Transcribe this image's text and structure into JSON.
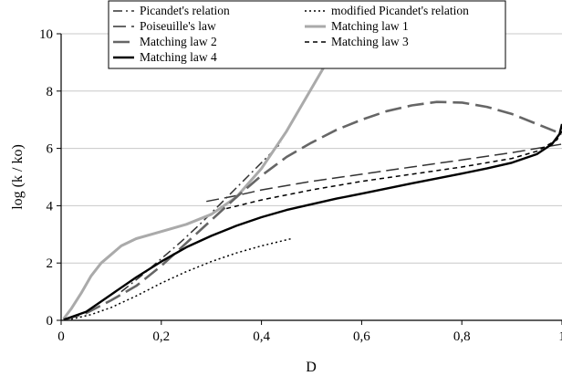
{
  "chart_data": {
    "type": "line",
    "title": "",
    "xlabel": "D",
    "ylabel": "log (k / ko)",
    "xlim": [
      0,
      1
    ],
    "ylim": [
      0,
      10
    ],
    "x_ticks": [
      0,
      0.2,
      0.4,
      0.6,
      0.8,
      1
    ],
    "x_tick_labels": [
      "0",
      "0,2",
      "0,4",
      "0,6",
      "0,8",
      "1"
    ],
    "y_ticks": [
      0,
      2,
      4,
      6,
      8,
      10
    ],
    "y_tick_labels": [
      "0",
      "2",
      "4",
      "6",
      "8",
      "10"
    ],
    "grid": "horizontal",
    "legend_position": "top",
    "series": [
      {
        "name": "Picandet's relation",
        "color": "#333333",
        "dash": "dash-dot",
        "points": [
          [
            0.12,
            1.0
          ],
          [
            0.16,
            1.55
          ],
          [
            0.2,
            2.15
          ],
          [
            0.24,
            2.75
          ],
          [
            0.28,
            3.4
          ],
          [
            0.32,
            4.1
          ],
          [
            0.36,
            4.8
          ],
          [
            0.4,
            5.5
          ],
          [
            0.44,
            6.2
          ]
        ]
      },
      {
        "name": "modified Picandet's relation",
        "color": "#000000",
        "dash": "dot",
        "points": [
          [
            0.02,
            0.04
          ],
          [
            0.06,
            0.2
          ],
          [
            0.1,
            0.45
          ],
          [
            0.15,
            0.85
          ],
          [
            0.2,
            1.3
          ],
          [
            0.25,
            1.7
          ],
          [
            0.3,
            2.05
          ],
          [
            0.35,
            2.35
          ],
          [
            0.4,
            2.6
          ],
          [
            0.46,
            2.85
          ]
        ]
      },
      {
        "name": "Poiseuille's law",
        "color": "#333333",
        "dash": "long-dash",
        "points": [
          [
            0.29,
            4.15
          ],
          [
            0.35,
            4.35
          ],
          [
            0.4,
            4.55
          ],
          [
            0.5,
            4.85
          ],
          [
            0.6,
            5.1
          ],
          [
            0.7,
            5.35
          ],
          [
            0.8,
            5.6
          ],
          [
            0.9,
            5.85
          ],
          [
            0.95,
            6.0
          ],
          [
            1.0,
            6.15
          ]
        ]
      },
      {
        "name": "Matching law 1",
        "color": "#aaaaaa",
        "dash": "solid",
        "points": [
          [
            0.005,
            0.05
          ],
          [
            0.02,
            0.4
          ],
          [
            0.04,
            0.95
          ],
          [
            0.06,
            1.55
          ],
          [
            0.08,
            2.0
          ],
          [
            0.1,
            2.3
          ],
          [
            0.12,
            2.6
          ],
          [
            0.15,
            2.85
          ],
          [
            0.2,
            3.1
          ],
          [
            0.25,
            3.35
          ],
          [
            0.3,
            3.7
          ],
          [
            0.35,
            4.3
          ],
          [
            0.4,
            5.3
          ],
          [
            0.45,
            6.6
          ],
          [
            0.5,
            8.1
          ],
          [
            0.55,
            9.6
          ],
          [
            0.57,
            10.2
          ]
        ]
      },
      {
        "name": "Matching law 2",
        "color": "#666666",
        "dash": "dash",
        "points": [
          [
            0.005,
            0.02
          ],
          [
            0.05,
            0.25
          ],
          [
            0.1,
            0.7
          ],
          [
            0.15,
            1.2
          ],
          [
            0.2,
            1.9
          ],
          [
            0.25,
            2.7
          ],
          [
            0.3,
            3.5
          ],
          [
            0.35,
            4.3
          ],
          [
            0.4,
            5.05
          ],
          [
            0.45,
            5.7
          ],
          [
            0.5,
            6.2
          ],
          [
            0.55,
            6.65
          ],
          [
            0.6,
            7.0
          ],
          [
            0.65,
            7.3
          ],
          [
            0.7,
            7.5
          ],
          [
            0.75,
            7.62
          ],
          [
            0.8,
            7.6
          ],
          [
            0.85,
            7.45
          ],
          [
            0.9,
            7.2
          ],
          [
            0.95,
            6.85
          ],
          [
            1.0,
            6.5
          ]
        ]
      },
      {
        "name": "Matching law 3",
        "color": "#000000",
        "dash": "short-dash",
        "points": [
          [
            0.33,
            3.9
          ],
          [
            0.4,
            4.2
          ],
          [
            0.5,
            4.55
          ],
          [
            0.6,
            4.85
          ],
          [
            0.7,
            5.1
          ],
          [
            0.8,
            5.35
          ],
          [
            0.9,
            5.65
          ],
          [
            0.95,
            5.9
          ],
          [
            0.99,
            6.3
          ],
          [
            1.0,
            6.6
          ]
        ]
      },
      {
        "name": "Matching law 4",
        "color": "#000000",
        "dash": "solid",
        "points": [
          [
            0.005,
            0.02
          ],
          [
            0.05,
            0.3
          ],
          [
            0.1,
            0.9
          ],
          [
            0.15,
            1.5
          ],
          [
            0.2,
            2.05
          ],
          [
            0.25,
            2.55
          ],
          [
            0.3,
            2.95
          ],
          [
            0.35,
            3.3
          ],
          [
            0.4,
            3.6
          ],
          [
            0.45,
            3.85
          ],
          [
            0.5,
            4.05
          ],
          [
            0.55,
            4.25
          ],
          [
            0.6,
            4.42
          ],
          [
            0.65,
            4.6
          ],
          [
            0.7,
            4.78
          ],
          [
            0.75,
            4.95
          ],
          [
            0.8,
            5.12
          ],
          [
            0.85,
            5.3
          ],
          [
            0.9,
            5.5
          ],
          [
            0.95,
            5.8
          ],
          [
            0.98,
            6.15
          ],
          [
            0.995,
            6.5
          ],
          [
            1.0,
            6.85
          ]
        ]
      }
    ]
  }
}
